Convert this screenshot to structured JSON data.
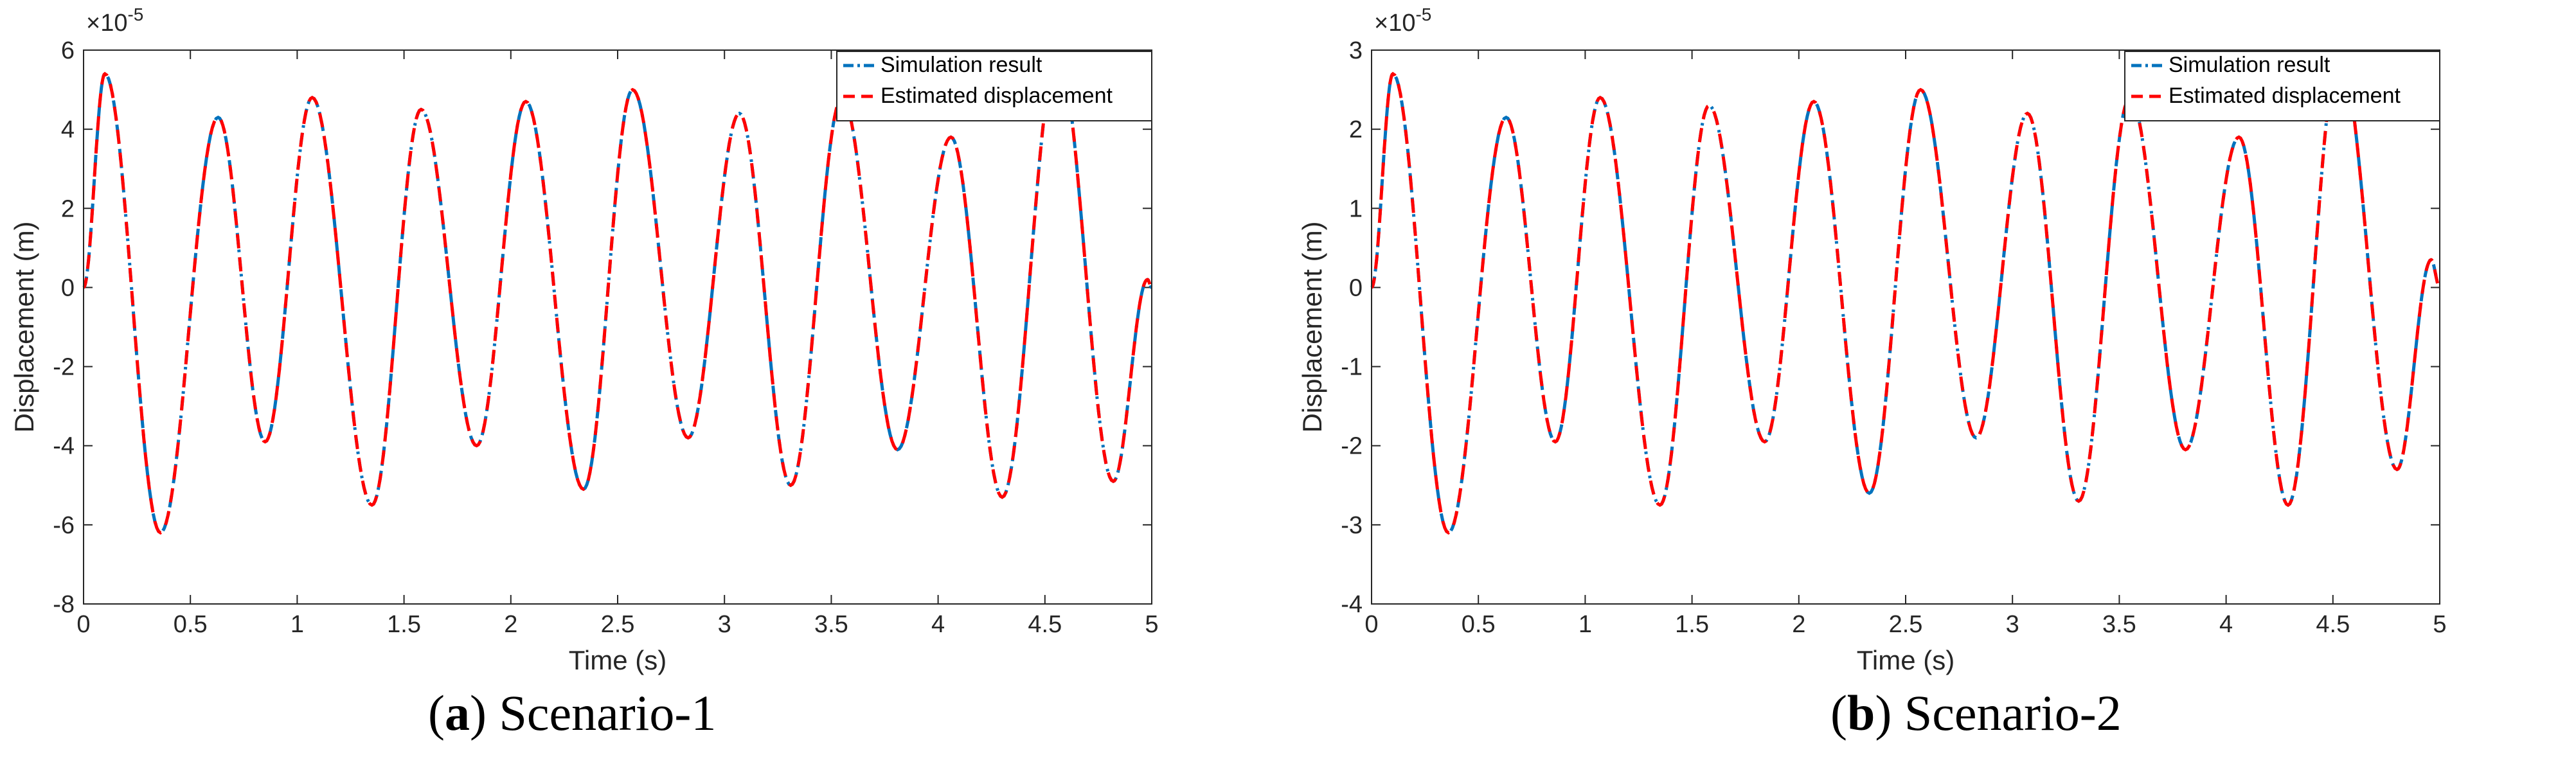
{
  "panels": [
    {
      "caption_letter": "a",
      "caption_text": "Scenario-1",
      "exponent_base": "×10",
      "exponent_power": "-5",
      "chart_data": {
        "type": "line",
        "title": "",
        "xlabel": "Time (s)",
        "ylabel": "Displacement (m)",
        "y_multiplier": "1e-5",
        "xlim": [
          0,
          5
        ],
        "ylim": [
          -8,
          6
        ],
        "xticks": [
          0,
          0.5,
          1,
          1.5,
          2,
          2.5,
          3,
          3.5,
          4,
          4.5,
          5
        ],
        "xtick_labels": [
          "0",
          "0.5",
          "1",
          "1.5",
          "2",
          "2.5",
          "3",
          "3.5",
          "4",
          "4.5",
          "5"
        ],
        "yticks": [
          -8,
          -6,
          -4,
          -2,
          0,
          2,
          4,
          6
        ],
        "ytick_labels": [
          "-8",
          "-6",
          "-4",
          "-2",
          "0",
          "2",
          "4",
          "6"
        ],
        "grid": false,
        "legend_position": "top-right",
        "extrema": [
          {
            "t": 0,
            "v": 0
          },
          {
            "t": 0.1,
            "v": 5.4
          },
          {
            "t": 0.36,
            "v": -6.2
          },
          {
            "t": 0.63,
            "v": 4.3
          },
          {
            "t": 0.85,
            "v": -3.9
          },
          {
            "t": 1.07,
            "v": 4.8
          },
          {
            "t": 1.35,
            "v": -5.5
          },
          {
            "t": 1.58,
            "v": 4.5
          },
          {
            "t": 1.84,
            "v": -4.0
          },
          {
            "t": 2.07,
            "v": 4.7
          },
          {
            "t": 2.34,
            "v": -5.1
          },
          {
            "t": 2.57,
            "v": 5.0
          },
          {
            "t": 2.83,
            "v": -3.8
          },
          {
            "t": 3.07,
            "v": 4.4
          },
          {
            "t": 3.31,
            "v": -5.0
          },
          {
            "t": 3.55,
            "v": 4.8
          },
          {
            "t": 3.81,
            "v": -4.1
          },
          {
            "t": 4.06,
            "v": 3.8
          },
          {
            "t": 4.3,
            "v": -5.3
          },
          {
            "t": 4.56,
            "v": 5.9
          },
          {
            "t": 4.82,
            "v": -4.9
          },
          {
            "t": 4.98,
            "v": 0.2
          },
          {
            "t": 5.0,
            "v": 0
          }
        ],
        "series": [
          {
            "name": "Simulation result",
            "color": "#0072BD",
            "dash": "dashdot"
          },
          {
            "name": "Estimated displacement",
            "color": "#FF0000",
            "dash": "dashed"
          }
        ]
      }
    },
    {
      "caption_letter": "b",
      "caption_text": "Scenario-2",
      "exponent_base": "×10",
      "exponent_power": "-5",
      "chart_data": {
        "type": "line",
        "title": "",
        "xlabel": "Time (s)",
        "ylabel": "Displacement (m)",
        "y_multiplier": "1e-5",
        "xlim": [
          0,
          5
        ],
        "ylim": [
          -4,
          3
        ],
        "xticks": [
          0,
          0.5,
          1,
          1.5,
          2,
          2.5,
          3,
          3.5,
          4,
          4.5,
          5
        ],
        "xtick_labels": [
          "0",
          "0.5",
          "1",
          "1.5",
          "2",
          "2.5",
          "3",
          "3.5",
          "4",
          "4.5",
          "5"
        ],
        "yticks": [
          -4,
          -3,
          -2,
          -1,
          0,
          1,
          2,
          3
        ],
        "ytick_labels": [
          "-4",
          "-3",
          "-2",
          "-1",
          "0",
          "1",
          "2",
          "3"
        ],
        "grid": false,
        "legend_position": "top-right",
        "extrema": [
          {
            "t": 0,
            "v": 0
          },
          {
            "t": 0.1,
            "v": 2.7
          },
          {
            "t": 0.36,
            "v": -3.1
          },
          {
            "t": 0.63,
            "v": 2.15
          },
          {
            "t": 0.86,
            "v": -1.95
          },
          {
            "t": 1.07,
            "v": 2.4
          },
          {
            "t": 1.35,
            "v": -2.75
          },
          {
            "t": 1.58,
            "v": 2.3
          },
          {
            "t": 1.84,
            "v": -1.95
          },
          {
            "t": 2.07,
            "v": 2.35
          },
          {
            "t": 2.33,
            "v": -2.6
          },
          {
            "t": 2.57,
            "v": 2.5
          },
          {
            "t": 2.83,
            "v": -1.9
          },
          {
            "t": 3.07,
            "v": 2.2
          },
          {
            "t": 3.31,
            "v": -2.7
          },
          {
            "t": 3.55,
            "v": 2.4
          },
          {
            "t": 3.81,
            "v": -2.05
          },
          {
            "t": 4.06,
            "v": 1.9
          },
          {
            "t": 4.29,
            "v": -2.75
          },
          {
            "t": 4.53,
            "v": 2.95
          },
          {
            "t": 4.8,
            "v": -2.3
          },
          {
            "t": 4.96,
            "v": 0.35
          },
          {
            "t": 5.0,
            "v": 0
          }
        ],
        "series": [
          {
            "name": "Simulation result",
            "color": "#0072BD",
            "dash": "dashdot"
          },
          {
            "name": "Estimated displacement",
            "color": "#FF0000",
            "dash": "dashed"
          }
        ]
      }
    }
  ]
}
